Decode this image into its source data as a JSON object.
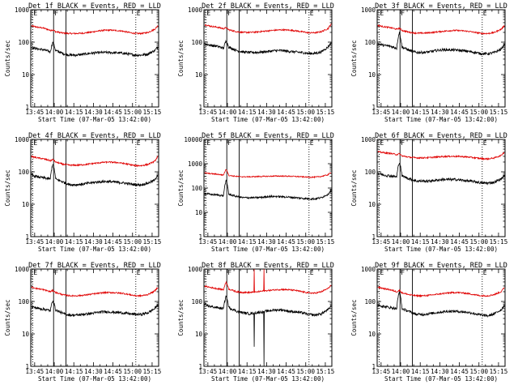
{
  "colors": {
    "events": "#000000",
    "lld": "#e00000",
    "axes": "#000000",
    "background": "#ffffff"
  },
  "panels": [
    {
      "title": "Det 1f BLACK = Events, RED = LLD",
      "xlabel": "Start Time (07-Mar-05 13:42:00)",
      "ylabel": "Counts/sec"
    },
    {
      "title": "Det 2f BLACK = Events, RED = LLD",
      "xlabel": "Start Time (07-Mar-05 13:42:00)",
      "ylabel": "Counts/sec"
    },
    {
      "title": "Det 3f BLACK = Events, RED = LLD",
      "xlabel": "Start Time (07-Mar-05 13:42:00)",
      "ylabel": "Counts/sec"
    },
    {
      "title": "Det 4f BLACK = Events, RED = LLD",
      "xlabel": "Start Time (07-Mar-05 13:42:00)",
      "ylabel": "Counts/sec"
    },
    {
      "title": "Det 5f BLACK = Events, RED = LLD",
      "xlabel": "Start Time (07-Mar-05 13:42:00)",
      "ylabel": "Counts/sec"
    },
    {
      "title": "Det 6f BLACK = Events, RED = LLD",
      "xlabel": "Start Time (07-Mar-05 13:42:00)",
      "ylabel": "Counts/sec"
    },
    {
      "title": "Det 7f BLACK = Events, RED = LLD",
      "xlabel": "Start Time (07-Mar-05 13:42:00)",
      "ylabel": "Counts/sec"
    },
    {
      "title": "Det 8f BLACK = Events, RED = LLD",
      "xlabel": "Start Time (07-Mar-05 13:42:00)",
      "ylabel": "Counts/sec"
    },
    {
      "title": "Det 9f BLACK = Events, RED = LLD",
      "xlabel": "Start Time (07-Mar-05 13:42:00)",
      "ylabel": "Counts/sec"
    }
  ],
  "chart_data": {
    "type": "line",
    "layout": "3x3 grid of panels",
    "x_ticks": [
      "13:45",
      "14:00",
      "14:15",
      "14:30",
      "14:45",
      "15:00",
      "15:15"
    ],
    "x_tick_minutes": [
      3,
      18,
      33,
      48,
      63,
      78,
      93
    ],
    "xlim_minutes_from_start": [
      0,
      98
    ],
    "y_scale": "log",
    "ylim": [
      1,
      1000
    ],
    "y_ticks": [
      1,
      10,
      100,
      1000
    ],
    "y_tick_labels_panel5": [
      1,
      10,
      100,
      1000,
      10000
    ],
    "ylim_panel5": [
      1,
      10000
    ],
    "markers": [
      {
        "label": "E",
        "minute": 1.5,
        "style": "dotted"
      },
      {
        "label": "F",
        "minute": 17.5,
        "style": "solid"
      },
      {
        "label": "",
        "minute": 27,
        "style": "solid"
      },
      {
        "label": "E",
        "minute": 80.5,
        "style": "dotted"
      }
    ],
    "series_names": [
      "Events",
      "LLD"
    ],
    "minutes": [
      0,
      5,
      10,
      15,
      17,
      19,
      25,
      30,
      35,
      40,
      45,
      50,
      55,
      60,
      65,
      70,
      75,
      80,
      85,
      90,
      95,
      98
    ],
    "events": [
      [
        70,
        62,
        58,
        50,
        100,
        55,
        44,
        40,
        40,
        42,
        45,
        47,
        48,
        48,
        47,
        46,
        43,
        40,
        40,
        43,
        55,
        75
      ],
      [
        90,
        80,
        75,
        65,
        110,
        70,
        55,
        50,
        48,
        48,
        50,
        52,
        55,
        55,
        52,
        50,
        48,
        45,
        45,
        50,
        70,
        100
      ],
      [
        90,
        80,
        75,
        65,
        200,
        70,
        55,
        48,
        48,
        50,
        55,
        58,
        58,
        57,
        55,
        52,
        48,
        44,
        44,
        48,
        60,
        90
      ],
      [
        80,
        70,
        65,
        60,
        180,
        60,
        48,
        40,
        40,
        42,
        45,
        48,
        50,
        50,
        48,
        46,
        43,
        40,
        40,
        45,
        55,
        90
      ],
      [
        60,
        55,
        52,
        48,
        200,
        55,
        45,
        40,
        40,
        40,
        42,
        45,
        45,
        44,
        42,
        40,
        38,
        36,
        36,
        40,
        55,
        85
      ],
      [
        90,
        80,
        75,
        70,
        200,
        75,
        60,
        52,
        52,
        52,
        55,
        58,
        58,
        58,
        55,
        52,
        50,
        45,
        45,
        48,
        60,
        80
      ],
      [
        70,
        62,
        58,
        52,
        110,
        55,
        42,
        38,
        38,
        40,
        42,
        45,
        48,
        48,
        46,
        45,
        42,
        40,
        40,
        45,
        60,
        85
      ],
      [
        80,
        70,
        65,
        60,
        150,
        65,
        50,
        45,
        42,
        45,
        48,
        52,
        55,
        55,
        50,
        48,
        45,
        40,
        38,
        42,
        55,
        75
      ],
      [
        80,
        70,
        65,
        60,
        200,
        60,
        48,
        40,
        40,
        42,
        45,
        48,
        50,
        50,
        48,
        46,
        42,
        38,
        36,
        42,
        55,
        80
      ]
    ],
    "lld": [
      [
        320,
        290,
        270,
        230,
        240,
        210,
        190,
        185,
        185,
        190,
        200,
        215,
        230,
        235,
        230,
        220,
        200,
        185,
        185,
        200,
        250,
        330
      ],
      [
        350,
        310,
        290,
        260,
        280,
        240,
        210,
        200,
        200,
        205,
        215,
        225,
        235,
        240,
        235,
        225,
        210,
        195,
        195,
        210,
        260,
        380
      ],
      [
        330,
        300,
        280,
        250,
        270,
        230,
        200,
        190,
        190,
        195,
        205,
        215,
        225,
        230,
        225,
        215,
        200,
        185,
        185,
        200,
        250,
        330
      ],
      [
        300,
        270,
        250,
        220,
        240,
        200,
        170,
        160,
        160,
        165,
        175,
        185,
        195,
        200,
        195,
        185,
        170,
        155,
        155,
        170,
        210,
        320
      ],
      [
        420,
        390,
        370,
        340,
        600,
        330,
        300,
        290,
        290,
        295,
        300,
        305,
        310,
        310,
        305,
        300,
        290,
        280,
        280,
        300,
        350,
        460
      ],
      [
        420,
        390,
        370,
        340,
        360,
        310,
        280,
        270,
        270,
        275,
        285,
        295,
        300,
        300,
        295,
        285,
        270,
        255,
        250,
        270,
        320,
        420
      ],
      [
        280,
        250,
        230,
        200,
        220,
        190,
        160,
        150,
        150,
        155,
        165,
        175,
        185,
        190,
        185,
        180,
        165,
        150,
        150,
        165,
        210,
        290
      ],
      [
        300,
        270,
        250,
        230,
        400,
        240,
        200,
        190,
        190,
        195,
        210,
        220,
        230,
        235,
        230,
        220,
        200,
        185,
        180,
        200,
        250,
        330
      ],
      [
        280,
        250,
        230,
        200,
        220,
        185,
        160,
        150,
        150,
        155,
        165,
        175,
        185,
        190,
        185,
        175,
        160,
        150,
        150,
        165,
        200,
        280
      ]
    ],
    "spikes": [
      {
        "panel": 8,
        "series": "Events",
        "minute": 38.5,
        "value": 4
      },
      {
        "panel": 8,
        "series": "Events",
        "minute": 46,
        "value": 1
      },
      {
        "panel": 8,
        "series": "LLD",
        "minute": 38.5,
        "value": 1000
      },
      {
        "panel": 8,
        "series": "LLD",
        "minute": 46,
        "value": 1000
      }
    ]
  }
}
